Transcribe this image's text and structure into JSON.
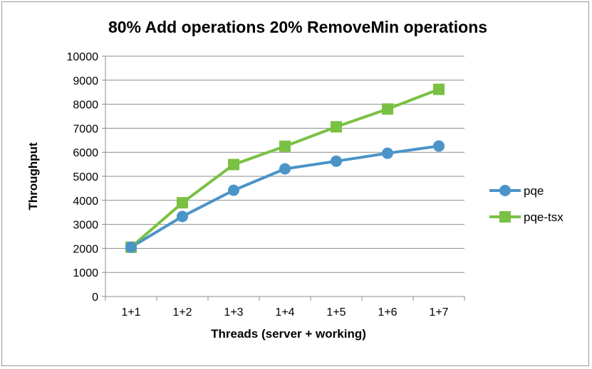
{
  "chart_data": {
    "type": "line",
    "title": "80% Add operations 20% RemoveMin operations",
    "xlabel": "Threads (server + working)",
    "ylabel": "Throughput",
    "categories": [
      "1+1",
      "1+2",
      "1+3",
      "1+4",
      "1+5",
      "1+6",
      "1+7"
    ],
    "ylim": [
      0,
      10000
    ],
    "yticks": [
      0,
      1000,
      2000,
      3000,
      4000,
      5000,
      6000,
      7000,
      8000,
      9000,
      10000
    ],
    "grid": true,
    "legend_position": "right",
    "series": [
      {
        "name": "pqe",
        "color": "#4a94c8",
        "marker": "circle",
        "values": [
          2050,
          3330,
          4420,
          5310,
          5630,
          5960,
          6260
        ]
      },
      {
        "name": "pqe-tsx",
        "color": "#7ac143",
        "marker": "square",
        "values": [
          2050,
          3900,
          5490,
          6250,
          7060,
          7800,
          8620
        ]
      }
    ]
  }
}
